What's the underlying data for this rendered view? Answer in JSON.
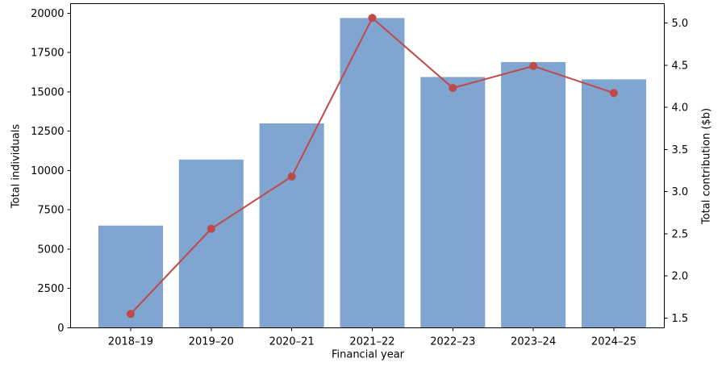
{
  "chart_data": {
    "type": "bar",
    "subtype": "combo-bar-line-dual-axis",
    "title": "",
    "categories": [
      "2018–19",
      "2019–20",
      "2020–21",
      "2021–22",
      "2022–23",
      "2023–24",
      "2024–25"
    ],
    "series": [
      {
        "name": "Total individuals",
        "type": "bar",
        "axis": "left",
        "color": "#7fa5d0",
        "values": [
          6500,
          10700,
          13000,
          19700,
          15950,
          16900,
          15800
        ]
      },
      {
        "name": "Total contribution ($b)",
        "type": "line",
        "axis": "right",
        "color": "#bf4a47",
        "marker": "circle",
        "values": [
          1.55,
          2.56,
          3.18,
          5.06,
          4.23,
          4.49,
          4.17
        ]
      }
    ],
    "xlabel": "Financial year",
    "ylabel_left": "Total individuals",
    "ylabel_right": "Total contribution ($b)",
    "yticks_left": [
      0,
      2500,
      5000,
      7500,
      10000,
      12500,
      15000,
      17500,
      20000
    ],
    "yticks_right": [
      1.5,
      2.0,
      2.5,
      3.0,
      3.5,
      4.0,
      4.5,
      5.0
    ],
    "ylim_left": [
      0,
      20615
    ],
    "ylim_right": [
      1.385,
      5.23
    ],
    "grid": false,
    "legend_position": "none",
    "axis_color": "#000000",
    "background_color": "#ffffff"
  }
}
